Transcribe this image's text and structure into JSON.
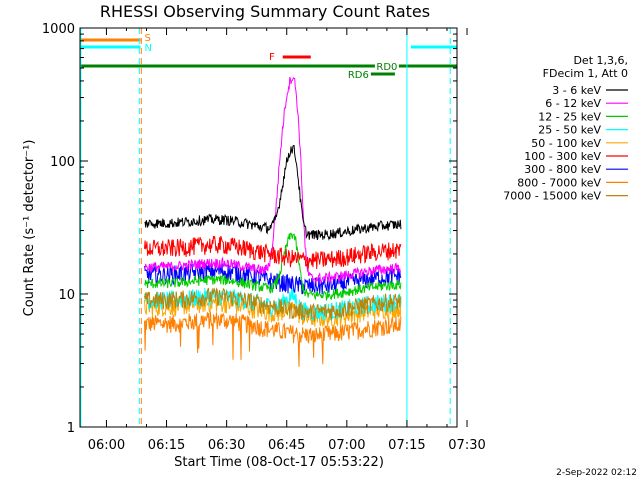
{
  "chart_data": {
    "type": "line",
    "title": "RHESSI Observing Summary Count Rates",
    "xlabel": "Start Time (08-Oct-17 05:53:22)",
    "ylabel": "Count Rate (s⁻¹ detector⁻¹)",
    "y_scale": "log",
    "ylim": [
      1,
      1000
    ],
    "xlim_minutes_from_0600": [
      -6.6,
      87.5
    ],
    "x_ticks": [
      {
        "label": "06:00",
        "t": 0
      },
      {
        "label": "06:15",
        "t": 15
      },
      {
        "label": "06:30",
        "t": 30
      },
      {
        "label": "06:45",
        "t": 45
      },
      {
        "label": "07:00",
        "t": 60
      },
      {
        "label": "07:15",
        "t": 75
      },
      {
        "label": "07:30",
        "t": 90
      }
    ],
    "y_ticks": [
      {
        "label": "1",
        "v": 1
      },
      {
        "label": "10",
        "v": 10
      },
      {
        "label": "100",
        "v": 100
      },
      {
        "label": "1000",
        "v": 1000
      }
    ],
    "legend_header": [
      "Det 1,3,6,",
      "FDecim 1, Att 0"
    ],
    "legend_position": "right",
    "series": [
      {
        "name": "3 - 6 keV",
        "color": "#000000",
        "base": 34,
        "peak": 130
      },
      {
        "name": "6 - 12 keV",
        "color": "#ff00ff",
        "base": 16,
        "peak": 430
      },
      {
        "name": "12 - 25 keV",
        "color": "#00cc00",
        "base": 12,
        "peak": 30
      },
      {
        "name": "25 - 50 keV",
        "color": "#00ffff",
        "base": 9,
        "peak": 11
      },
      {
        "name": "50 - 100 keV",
        "color": "#ffa500",
        "base": 8,
        "peak": 9
      },
      {
        "name": "100 - 300 keV",
        "color": "#ff0000",
        "base": 22,
        "peak": 20
      },
      {
        "name": "300 - 800 keV",
        "color": "#0000ff",
        "base": 14,
        "peak": 12
      },
      {
        "name": "800 - 7000 keV",
        "color": "#ff8000",
        "base": 6,
        "peak": 6
      },
      {
        "name": "7000 - 15000 keV",
        "color": "#b8860b",
        "base": 9,
        "peak": 9
      }
    ],
    "data_window_minutes_from_0600": [
      9.5,
      73.5
    ],
    "flare_peak_minute": 46.5,
    "flags": [
      {
        "label": "S",
        "color": "#ff8000",
        "row": "S",
        "segments": [
          [
            -6.6,
            8.5
          ]
        ]
      },
      {
        "label": "N",
        "color": "#00ffff",
        "row": "N",
        "segments": [
          [
            -6.6,
            8.5
          ],
          [
            76,
            87.5
          ]
        ]
      },
      {
        "label": "F",
        "color": "#ff0000",
        "row": "F",
        "segments": [
          [
            44,
            51
          ]
        ]
      },
      {
        "label": "RD0",
        "color": "#008000",
        "row": "RD0",
        "segments": [
          [
            -6.6,
            87.5
          ]
        ]
      },
      {
        "label": "RD6",
        "color": "#008000",
        "row": "RD6",
        "segments": [
          [
            66,
            72
          ]
        ]
      }
    ],
    "vertical_markers": [
      {
        "t": -6.4,
        "color": "#00ffff",
        "style": "solid"
      },
      {
        "t": 8.2,
        "color": "#00ffff",
        "style": "dashed"
      },
      {
        "t": 8.7,
        "color": "#ff8000",
        "style": "dashed"
      },
      {
        "t": 75.0,
        "color": "#00ffff",
        "style": "solid"
      },
      {
        "t": 85.8,
        "color": "#00ffff",
        "style": "dashed"
      }
    ]
  },
  "footer": {
    "date_stamp": "2-Sep-2022 02:12"
  }
}
